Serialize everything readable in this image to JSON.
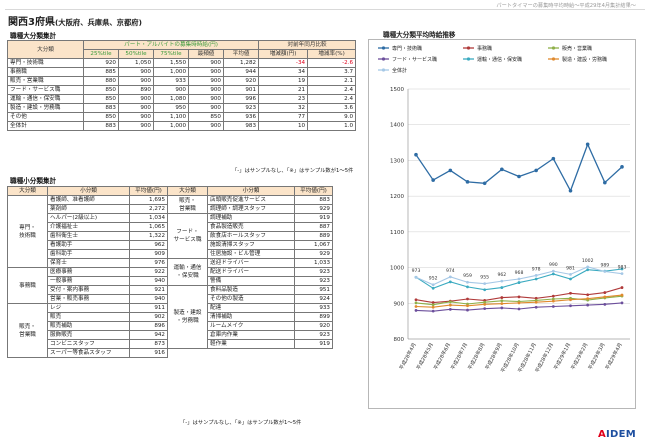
{
  "header": {
    "note": "パートタイマーの募集時平均時給～平成29年4月集計結果～",
    "title": "関西3府県",
    "subtitle": "(大阪府、兵庫県、京都府)"
  },
  "major_table": {
    "section_title": "職種大分類集計",
    "col_category": "大分類",
    "col_wage_group": "パート・アルバイトの募集時時給(円)",
    "col_yoy_group": "対前年同月比較",
    "sub_headers": [
      "25%tile",
      "50%tile",
      "75%tile",
      "最頻値",
      "平均値",
      "増減額(円)",
      "増減率(%)"
    ],
    "rows": [
      {
        "name": "専門・技術職",
        "p25": "920",
        "p50": "1,050",
        "p75": "1,550",
        "mode": "900",
        "avg": "1,282",
        "diff": "-34",
        "rate": "-2.6"
      },
      {
        "name": "事務職",
        "p25": "885",
        "p50": "900",
        "p75": "1,000",
        "mode": "900",
        "avg": "944",
        "diff": "34",
        "rate": "3.7"
      },
      {
        "name": "販売・営業職",
        "p25": "880",
        "p50": "900",
        "p75": "933",
        "mode": "900",
        "avg": "920",
        "diff": "19",
        "rate": "2.1"
      },
      {
        "name": "フード・サービス職",
        "p25": "850",
        "p50": "890",
        "p75": "900",
        "mode": "900",
        "avg": "901",
        "diff": "21",
        "rate": "2.4"
      },
      {
        "name": "運輸・通信・保安職",
        "p25": "850",
        "p50": "900",
        "p75": "1,080",
        "mode": "900",
        "avg": "996",
        "diff": "23",
        "rate": "2.4"
      },
      {
        "name": "製造・建設・労務職",
        "p25": "883",
        "p50": "900",
        "p75": "950",
        "mode": "900",
        "avg": "923",
        "diff": "32",
        "rate": "3.6"
      },
      {
        "name": "その他",
        "p25": "850",
        "p50": "900",
        "p75": "1,100",
        "mode": "850",
        "avg": "936",
        "diff": "77",
        "rate": "9.0"
      },
      {
        "name": "全体計",
        "p25": "883",
        "p50": "900",
        "p75": "1,000",
        "mode": "900",
        "avg": "983",
        "diff": "10",
        "rate": "1.0"
      }
    ],
    "footnote": "「-」はサンプルなし、「※」はサンプル数が1～5件"
  },
  "minor_table": {
    "section_title": "職種小分類集計",
    "col_major": "大分類",
    "col_minor": "小分類",
    "col_avg": "平均値(円)",
    "left": [
      {
        "group": "専門・\n技術職",
        "items": [
          {
            "name": "看護師、准看護師",
            "avg": "1,695"
          },
          {
            "name": "薬剤師",
            "avg": "2,272"
          },
          {
            "name": "ヘルパー(2級以上)",
            "avg": "1,034"
          },
          {
            "name": "介護福祉士",
            "avg": "1,065"
          },
          {
            "name": "歯科衛生士",
            "avg": "1,322"
          },
          {
            "name": "看護助手",
            "avg": "962"
          },
          {
            "name": "歯科助手",
            "avg": "909"
          },
          {
            "name": "保育士",
            "avg": "976"
          }
        ]
      },
      {
        "group": "事務職",
        "items": [
          {
            "name": "医療事務",
            "avg": "922"
          },
          {
            "name": "一般事務",
            "avg": "940"
          },
          {
            "name": "受付・案内事務",
            "avg": "921"
          },
          {
            "name": "営業・販売事務",
            "avg": "940"
          }
        ]
      },
      {
        "group": "販売・\n営業職",
        "items": [
          {
            "name": "レジ",
            "avg": "911"
          },
          {
            "name": "販売",
            "avg": "902"
          },
          {
            "name": "販売補助",
            "avg": "896"
          },
          {
            "name": "服飾販売",
            "avg": "942"
          },
          {
            "name": "コンビニスタッフ",
            "avg": "873"
          },
          {
            "name": "スーパー等食品スタッフ",
            "avg": "916"
          }
        ]
      }
    ],
    "right": [
      {
        "group": "販売・\n営業職",
        "items": [
          {
            "name": "店頭販売促進サービス",
            "avg": "883"
          },
          {
            "name": "調理師・調理スタッフ",
            "avg": "929"
          }
        ]
      },
      {
        "group": "フード・\nサービス職",
        "items": [
          {
            "name": "調理補助",
            "avg": "919"
          },
          {
            "name": "食品製造販売",
            "avg": "887"
          },
          {
            "name": "飲食店ホールスタッフ",
            "avg": "889"
          },
          {
            "name": "施設清掃スタッフ",
            "avg": "1,067"
          },
          {
            "name": "住居施設・ビル管理",
            "avg": "929"
          }
        ]
      },
      {
        "group": "運輸・通信\n・保安職",
        "items": [
          {
            "name": "送迎ドライバー",
            "avg": "1,033"
          },
          {
            "name": "配送ドライバー",
            "avg": "923"
          },
          {
            "name": "警備",
            "avg": "923"
          }
        ]
      },
      {
        "group": "製造・建設\n・労務職",
        "items": [
          {
            "name": "食料品製造",
            "avg": "951"
          },
          {
            "name": "その他の製造",
            "avg": "924"
          },
          {
            "name": "配達",
            "avg": "933"
          },
          {
            "name": "清掃補助",
            "avg": "899"
          },
          {
            "name": "ルームメイク",
            "avg": "920"
          },
          {
            "name": "倉庫内作業",
            "avg": "923"
          },
          {
            "name": "軽作業",
            "avg": "919"
          }
        ]
      }
    ],
    "footnote": "「-」はサンプルなし、「※」はサンプル数が1～5件"
  },
  "chart_data": {
    "type": "line",
    "title": "職種大分類平均時給推移",
    "ylim": [
      800,
      1500
    ],
    "yticks": [
      800,
      900,
      1000,
      1100,
      1200,
      1300,
      1400,
      1500
    ],
    "x": [
      "平成28年4月",
      "平成28年5月",
      "平成28年6月",
      "平成28年7月",
      "平成28年8月",
      "平成28年9月",
      "平成28年10月",
      "平成28年11月",
      "平成28年12月",
      "平成29年1月",
      "平成29年2月",
      "平成29年3月",
      "平成29年4月"
    ],
    "series": [
      {
        "name": "専門・技術職",
        "color": "#2e6ca4",
        "values": [
          1316,
          1245,
          1272,
          1240,
          1236,
          1275,
          1255,
          1272,
          1305,
          1215,
          1345,
          1238,
          1282
        ]
      },
      {
        "name": "事務職",
        "color": "#b03a3a",
        "values": [
          910,
          902,
          906,
          912,
          908,
          916,
          918,
          914,
          920,
          928,
          924,
          930,
          944
        ]
      },
      {
        "name": "販売・営業職",
        "color": "#8fb04a",
        "values": [
          901,
          896,
          904,
          898,
          903,
          907,
          905,
          908,
          912,
          914,
          909,
          915,
          920
        ]
      },
      {
        "name": "フード・サービス職",
        "color": "#6c4f9c",
        "values": [
          880,
          878,
          883,
          881,
          885,
          887,
          884,
          889,
          891,
          893,
          895,
          897,
          901
        ]
      },
      {
        "name": "運輸・通信・保安職",
        "color": "#3aaac0",
        "values": [
          973,
          942,
          960,
          946,
          938,
          944,
          958,
          968,
          982,
          968,
          994,
          990,
          996
        ]
      },
      {
        "name": "製造・建設・労務職",
        "color": "#e08a2e",
        "values": [
          891,
          889,
          895,
          893,
          897,
          899,
          901,
          903,
          906,
          910,
          913,
          918,
          923
        ]
      },
      {
        "name": "全体計",
        "color": "#a6c8e6",
        "values": [
          973,
          952,
          974,
          959,
          955,
          962,
          968,
          978,
          990,
          981,
          1002,
          989,
          983
        ]
      }
    ],
    "data_labels": {
      "series": "全体計",
      "values": [
        973,
        952,
        974,
        959,
        955,
        962,
        968,
        978,
        990,
        981,
        1002,
        989,
        983
      ]
    }
  },
  "logo": {
    "text": "AIDEM"
  }
}
